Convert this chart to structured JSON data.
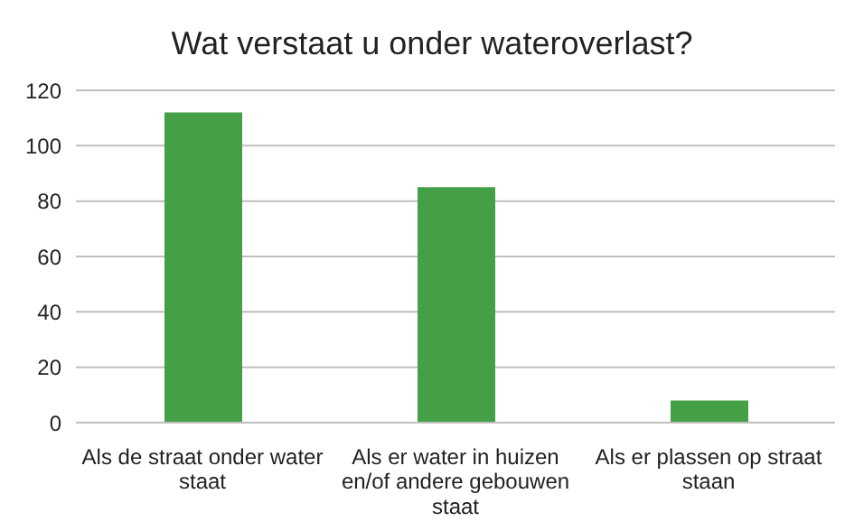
{
  "chart_data": {
    "type": "bar",
    "title": "Wat verstaat u onder wateroverlast?",
    "categories": [
      "Als de straat onder water staat",
      "Als er water in huizen en/of andere gebouwen staat",
      "Als er plassen op straat staan"
    ],
    "values": [
      112,
      85,
      8
    ],
    "color": "#43a047",
    "ylim": [
      0,
      120
    ],
    "yticks": [
      0,
      20,
      40,
      60,
      80,
      100,
      120
    ],
    "grid": "y",
    "legend": false
  }
}
